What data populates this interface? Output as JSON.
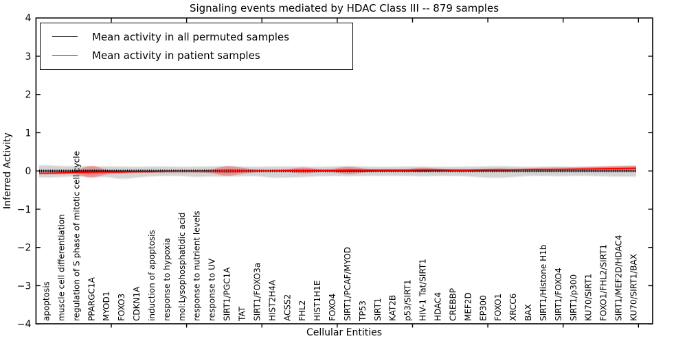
{
  "title": "Signaling events mediated by HDAC Class III -- 879 samples",
  "axes": {
    "ylabel": "Inferred Activity",
    "xlabel": "Cellular Entities"
  },
  "legend": {
    "position": "upper left",
    "items": [
      {
        "label": "Mean activity in all permuted samples",
        "color": "#000000"
      },
      {
        "label": "Mean activity in patient samples",
        "color": "#ff0000"
      }
    ]
  },
  "colors": {
    "permuted_line": "#000000",
    "patient_line": "#ff0000",
    "permuted_band": "rgba(0,0,0,0.10)",
    "patient_band": "rgba(255,0,0,0.28)",
    "frame": "#000000"
  },
  "chart_data": {
    "type": "line",
    "title": "Signaling events mediated by HDAC Class III -- 879 samples",
    "xlabel": "Cellular Entities",
    "ylabel": "Inferred Activity",
    "ylim": [
      -4,
      4
    ],
    "yticks": [
      "4",
      "3",
      "2",
      "1",
      "0",
      "−1",
      "−2",
      "−3",
      "−4"
    ],
    "ytick_values": [
      4,
      3,
      2,
      1,
      0,
      -1,
      -2,
      -3,
      -4
    ],
    "grid": false,
    "legend_position": "upper left",
    "categories": [
      "apoptosis",
      "muscle cell differentiation",
      "regulation of S phase of mitotic cell cycle",
      "PPARGC1A",
      "MYOD1",
      "FOXO3",
      "CDKN1A",
      "induction of apoptosis",
      "response to hypoxia",
      "mol:Lysophosphatidic acid",
      "response to nutrient levels",
      "response to UV",
      "SIRT1/PGC1A",
      "TAT",
      "SIRT1/FOXO3a",
      "HIST2H4A",
      "ACSS2",
      "FHL2",
      "HIST1H1E",
      "FOXO4",
      "SIRT1/PCAF/MYOD",
      "TP53",
      "SIRT1",
      "KAT2B",
      "p53/SIRT1",
      "HIV-1 Tat/SIRT1",
      "HDAC4",
      "CREBBP",
      "MEF2D",
      "EP300",
      "FOXO1",
      "XRCC6",
      "BAX",
      "SIRT1/Histone H1b",
      "SIRT1/FOXO4",
      "SIRT1/p300",
      "KU70/SIRT1",
      "FOXO1/FHL2/SIRT1",
      "SIRT1/MEF2D/HDAC4",
      "KU70/SIRT1/BAX"
    ],
    "series": [
      {
        "name": "Mean activity in all permuted samples",
        "color": "#000000",
        "style": "solid with dense tick markers",
        "values": [
          0,
          0,
          0,
          0,
          0,
          0,
          0,
          0,
          0,
          0,
          0,
          0,
          0,
          0,
          0,
          0,
          0,
          0,
          0,
          0,
          0,
          0,
          0,
          0,
          0,
          0,
          0,
          0,
          0,
          0,
          0,
          0,
          0,
          0,
          0,
          0,
          0,
          0,
          0,
          0
        ]
      },
      {
        "name": "Mean activity in patient samples",
        "color": "#ff0000",
        "style": "solid",
        "values": [
          -0.06,
          -0.05,
          -0.04,
          -0.03,
          -0.03,
          -0.03,
          -0.02,
          -0.02,
          -0.01,
          -0.01,
          -0.01,
          -0.01,
          0.0,
          0.0,
          0.0,
          0.0,
          0.01,
          0.01,
          0.01,
          0.01,
          0.02,
          0.02,
          0.02,
          0.02,
          0.02,
          0.03,
          0.03,
          0.02,
          0.02,
          0.03,
          0.03,
          0.03,
          0.04,
          0.04,
          0.04,
          0.05,
          0.05,
          0.06,
          0.06,
          0.07
        ]
      }
    ],
    "bands": [
      {
        "name": "permuted samples range",
        "color": "rgba(0,0,0,0.10)",
        "upper": [
          0.14,
          0.12,
          0.11,
          0.12,
          0.11,
          0.11,
          0.1,
          0.11,
          0.11,
          0.1,
          0.11,
          0.11,
          0.12,
          0.11,
          0.1,
          0.11,
          0.11,
          0.11,
          0.1,
          0.11,
          0.12,
          0.11,
          0.1,
          0.1,
          0.11,
          0.11,
          0.1,
          0.1,
          0.11,
          0.11,
          0.12,
          0.11,
          0.1,
          0.11,
          0.11,
          0.1,
          0.11,
          0.11,
          0.12,
          0.12
        ],
        "lower": [
          -0.16,
          -0.15,
          -0.13,
          -0.16,
          -0.14,
          -0.2,
          -0.16,
          -0.13,
          -0.12,
          -0.12,
          -0.15,
          -0.13,
          -0.14,
          -0.13,
          -0.12,
          -0.17,
          -0.16,
          -0.15,
          -0.13,
          -0.12,
          -0.13,
          -0.12,
          -0.12,
          -0.12,
          -0.12,
          -0.13,
          -0.12,
          -0.12,
          -0.13,
          -0.16,
          -0.17,
          -0.15,
          -0.12,
          -0.12,
          -0.13,
          -0.12,
          -0.12,
          -0.13,
          -0.14,
          -0.14
        ]
      },
      {
        "name": "patient samples range",
        "color": "rgba(255,0,0,0.28)",
        "upper": [
          -0.03,
          -0.01,
          0.0,
          0.17,
          0.02,
          0.01,
          0.01,
          0.01,
          0.02,
          0.02,
          0.02,
          0.03,
          0.15,
          0.08,
          0.03,
          0.03,
          0.04,
          0.1,
          0.05,
          0.04,
          0.13,
          0.06,
          0.05,
          0.05,
          0.05,
          0.09,
          0.06,
          0.05,
          0.05,
          0.06,
          0.07,
          0.06,
          0.07,
          0.08,
          0.09,
          0.09,
          0.11,
          0.12,
          0.13,
          0.14
        ],
        "lower": [
          -0.09,
          -0.09,
          -0.08,
          -0.2,
          -0.08,
          -0.07,
          -0.05,
          -0.05,
          -0.04,
          -0.04,
          -0.04,
          -0.05,
          -0.15,
          -0.07,
          -0.03,
          -0.03,
          -0.02,
          -0.08,
          -0.03,
          -0.02,
          -0.1,
          -0.04,
          -0.01,
          -0.01,
          -0.01,
          -0.04,
          0.0,
          -0.01,
          -0.01,
          0.0,
          -0.01,
          0.0,
          0.01,
          0.0,
          0.0,
          0.01,
          0.0,
          0.01,
          0.0,
          0.01
        ]
      }
    ]
  }
}
